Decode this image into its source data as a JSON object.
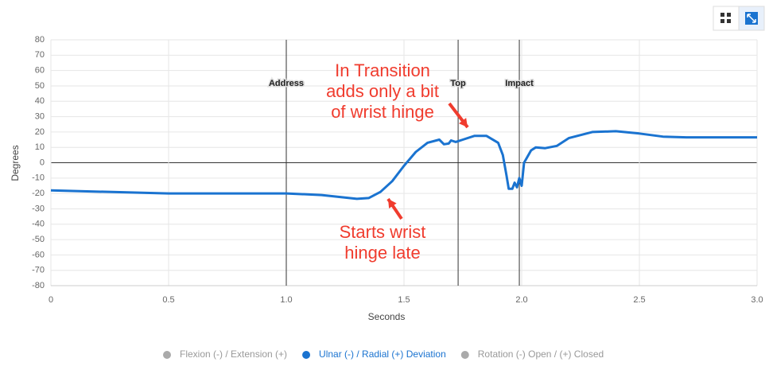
{
  "chart_data": {
    "type": "line",
    "x_label": "Seconds",
    "y_label": "Degrees",
    "x": [
      0,
      0.5,
      1.0,
      1.15,
      1.3,
      1.35,
      1.4,
      1.45,
      1.5,
      1.55,
      1.6,
      1.65,
      1.67,
      1.69,
      1.7,
      1.72,
      1.75,
      1.8,
      1.85,
      1.9,
      1.92,
      1.935,
      1.945,
      1.96,
      1.97,
      1.98,
      1.99,
      2.0,
      2.01,
      2.04,
      2.06,
      2.1,
      2.15,
      2.2,
      2.3,
      2.4,
      2.5,
      2.6,
      2.7,
      2.8,
      2.9,
      3.0
    ],
    "series": [
      {
        "name": "Flexion (-) / Extension (+)",
        "color": "#aaaaaa",
        "visible": false
      },
      {
        "name": "Ulnar (-) / Radial (+) Deviation",
        "color": "#1a73d0",
        "visible": true,
        "values": [
          -18,
          -20,
          -20,
          -21,
          -23.5,
          -23,
          -19,
          -12,
          -2,
          7,
          13,
          15,
          12,
          12.5,
          14.5,
          13.5,
          15,
          17.5,
          17.5,
          13,
          5,
          -8,
          -17,
          -17,
          -13,
          -16,
          -10,
          -15,
          0,
          8,
          10,
          9.5,
          11,
          16,
          20,
          20.5,
          19,
          17,
          16.5,
          16.5,
          16.5,
          16.5
        ]
      },
      {
        "name": "Rotation (-) Open / (+) Closed",
        "color": "#aaaaaa",
        "visible": false
      }
    ],
    "xlim": [
      0,
      3
    ],
    "xticks": [
      0,
      0.5,
      {
        "value": 1,
        "label": "1.0"
      },
      1.5,
      {
        "value": 2,
        "label": "2.0"
      },
      2.5,
      {
        "value": 3,
        "label": "3.0"
      }
    ],
    "ylim": [
      -80,
      80
    ],
    "yticks": [
      -80,
      -70,
      -60,
      -50,
      -40,
      -30,
      -20,
      -10,
      0,
      10,
      20,
      30,
      40,
      50,
      60,
      70,
      80
    ],
    "grid": true,
    "markers": [
      {
        "x": 1.0,
        "label": "Address"
      },
      {
        "x": 1.73,
        "label": "Top"
      },
      {
        "x": 1.99,
        "label": "Impact"
      }
    ],
    "annotations": [
      {
        "lines": [
          "In Transition",
          "adds only a bit",
          "of wrist hinge"
        ],
        "color": "#f03c2e"
      },
      {
        "lines": [
          "Starts wrist",
          "hinge late"
        ],
        "color": "#f03c2e"
      }
    ]
  }
}
